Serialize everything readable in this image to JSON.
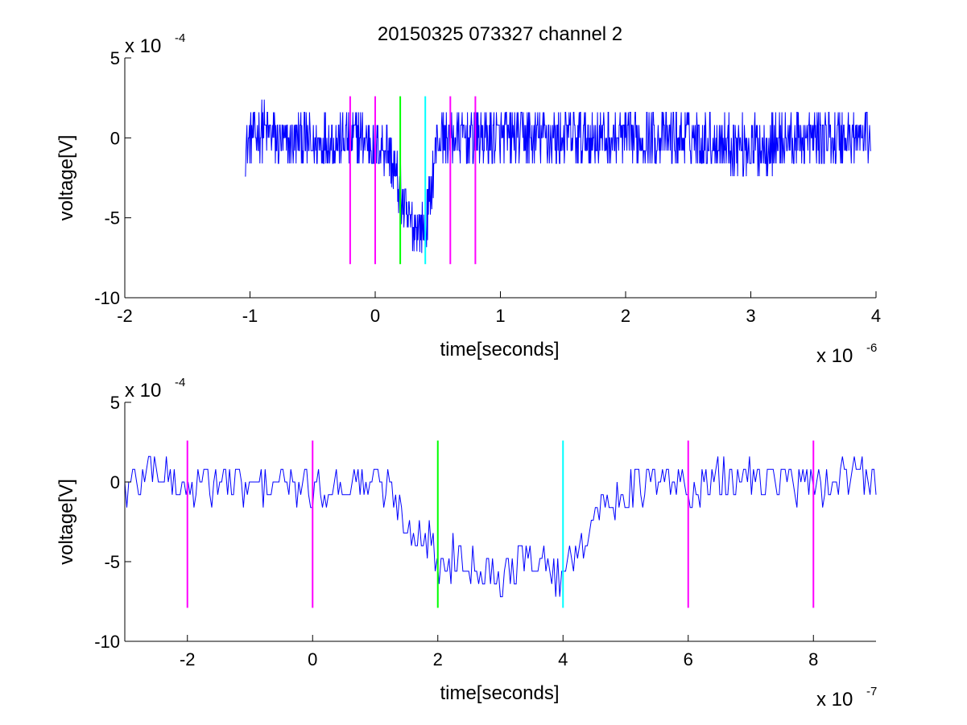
{
  "figure": {
    "title": "20150325 073327 channel 2",
    "colors": {
      "signal": "#0000ff",
      "marker_magenta": "#ff00ff",
      "marker_green": "#00ff00",
      "marker_cyan": "#00ffff",
      "axis": "#000000",
      "background": "#ffffff"
    }
  },
  "chart_data": [
    {
      "type": "line",
      "title": "20150325 073327 channel 2",
      "xlabel": "time[seconds]",
      "ylabel": "voltage[V]",
      "x_multiplier": {
        "base": "x 10",
        "exp": "-6"
      },
      "y_multiplier": {
        "base": "x 10",
        "exp": "-4"
      },
      "xlim": [
        -2,
        4
      ],
      "ylim": [
        -10,
        5
      ],
      "xticks": [
        -2,
        -1,
        0,
        1,
        2,
        3,
        4
      ],
      "xtick_labels": [
        "-2",
        "-1",
        "0",
        "1",
        "2",
        "3",
        "4"
      ],
      "yticks": [
        -10,
        -5,
        0,
        5
      ],
      "ytick_labels": [
        "-10",
        "-5",
        "0",
        "5"
      ],
      "grid": false,
      "series": [
        {
          "kind": "signal",
          "x": [
            -1.04,
            -1.0,
            -0.9,
            -0.8,
            -0.7,
            -0.6,
            -0.5,
            -0.4,
            -0.3,
            -0.2,
            -0.1,
            0.0,
            0.1,
            0.15,
            0.2,
            0.25,
            0.3,
            0.35,
            0.4,
            0.45,
            0.5,
            0.6,
            0.8,
            1.0,
            1.5,
            2.0,
            2.5,
            3.0,
            3.5,
            3.96
          ],
          "y": [
            -1.0,
            0.0,
            0.5,
            0.0,
            -0.5,
            0.0,
            -0.5,
            0.0,
            -0.2,
            0.0,
            0.0,
            -0.5,
            -0.5,
            -2.0,
            -3.5,
            -5.0,
            -5.5,
            -5.5,
            -5.8,
            -3.0,
            0.0,
            0.0,
            0.0,
            0.0,
            0.0,
            0.0,
            0.0,
            -0.5,
            0.0,
            0.0
          ],
          "noise_band": [
            -2.4,
            2.4
          ],
          "trough_min": -7.2
        }
      ],
      "markers": [
        {
          "x": -0.2,
          "y": [
            -7.9,
            2.6
          ],
          "color": "magenta"
        },
        {
          "x": 0.0,
          "y": [
            -7.9,
            2.6
          ],
          "color": "magenta"
        },
        {
          "x": 0.2,
          "y": [
            -7.9,
            2.6
          ],
          "color": "green"
        },
        {
          "x": 0.4,
          "y": [
            -7.9,
            2.6
          ],
          "color": "cyan"
        },
        {
          "x": 0.6,
          "y": [
            -7.9,
            2.6
          ],
          "color": "magenta"
        },
        {
          "x": 0.8,
          "y": [
            -7.9,
            2.6
          ],
          "color": "magenta"
        }
      ]
    },
    {
      "type": "line",
      "xlabel": "time[seconds]",
      "ylabel": "voltage[V]",
      "x_multiplier": {
        "base": "x 10",
        "exp": "-7"
      },
      "y_multiplier": {
        "base": "x 10",
        "exp": "-4"
      },
      "xlim": [
        -3,
        9
      ],
      "ylim": [
        -10,
        5
      ],
      "xticks": [
        -2,
        0,
        2,
        4,
        6,
        8
      ],
      "xtick_labels": [
        "-2",
        "0",
        "2",
        "4",
        "6",
        "8"
      ],
      "yticks": [
        -10,
        -5,
        0,
        5
      ],
      "ytick_labels": [
        "-10",
        "-5",
        "0",
        "5"
      ],
      "grid": false,
      "series": [
        {
          "kind": "signal",
          "x": [
            -3.0,
            -2.5,
            -2.2,
            -2.0,
            -1.5,
            -1.0,
            -0.5,
            0.0,
            0.5,
            1.0,
            1.3,
            1.5,
            1.7,
            1.9,
            2.0,
            2.3,
            2.6,
            3.0,
            3.3,
            3.6,
            3.9,
            4.0,
            4.1,
            4.3,
            4.5,
            5.0,
            5.5,
            6.0,
            6.5,
            7.0,
            7.5,
            8.0,
            8.5,
            9.0
          ],
          "y": [
            -0.5,
            1.0,
            0.0,
            -0.5,
            0.0,
            -0.5,
            0.0,
            -0.5,
            0.0,
            0.0,
            -0.8,
            -2.5,
            -3.2,
            -4.0,
            -5.5,
            -4.5,
            -5.0,
            -6.0,
            -5.0,
            -4.8,
            -6.0,
            -5.5,
            -5.0,
            -3.5,
            -2.0,
            -0.5,
            0.0,
            -0.5,
            0.0,
            0.5,
            0.0,
            -0.5,
            0.5,
            0.0
          ],
          "noise_band": [
            -2.4,
            2.4
          ],
          "trough_min": -7.2
        }
      ],
      "markers": [
        {
          "x": -2,
          "y": [
            -7.9,
            2.6
          ],
          "color": "magenta"
        },
        {
          "x": 0,
          "y": [
            -7.9,
            2.6
          ],
          "color": "magenta"
        },
        {
          "x": 2,
          "y": [
            -7.9,
            2.6
          ],
          "color": "green"
        },
        {
          "x": 4,
          "y": [
            -7.9,
            2.6
          ],
          "color": "cyan"
        },
        {
          "x": 6,
          "y": [
            -7.9,
            2.6
          ],
          "color": "magenta"
        },
        {
          "x": 8,
          "y": [
            -7.9,
            2.6
          ],
          "color": "magenta"
        }
      ]
    }
  ]
}
